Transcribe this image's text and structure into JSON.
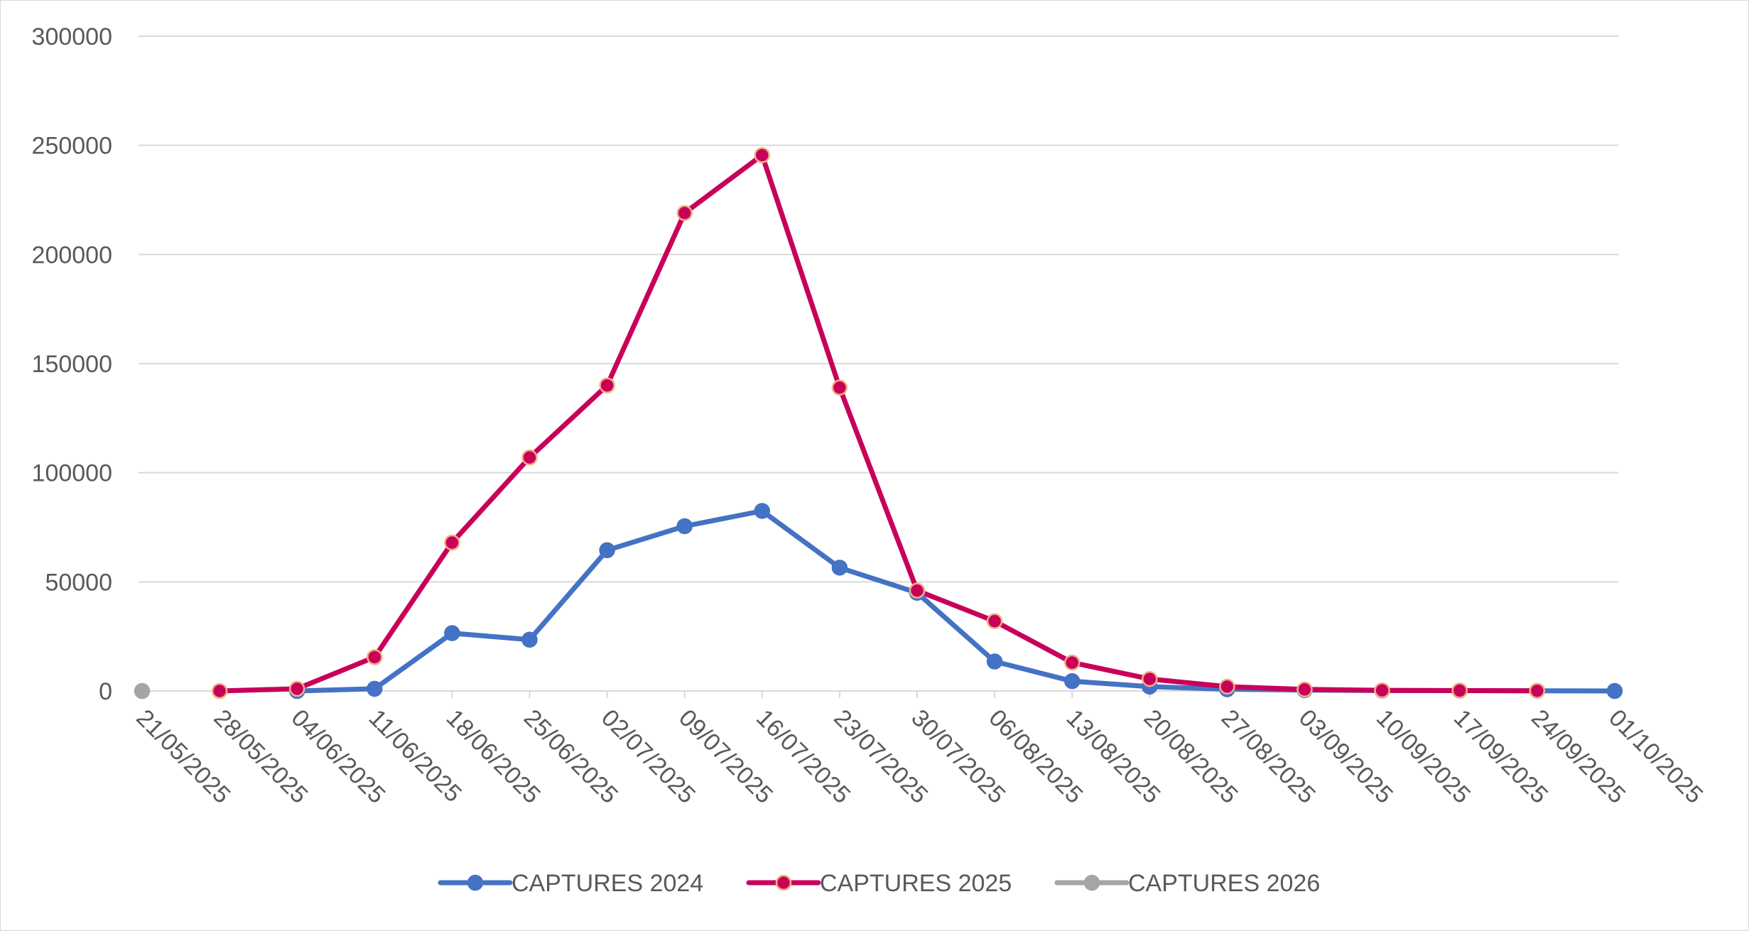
{
  "chart_data": {
    "type": "line",
    "title": "",
    "xlabel": "",
    "ylabel": "",
    "ylim": [
      0,
      300000
    ],
    "yticks": [
      "0",
      "50000",
      "100000",
      "150000",
      "200000",
      "250000",
      "300000"
    ],
    "categories": [
      "21/05/2025",
      "28/05/2025",
      "04/06/2025",
      "11/06/2025",
      "18/06/2025",
      "25/06/2025",
      "02/07/2025",
      "09/07/2025",
      "16/07/2025",
      "23/07/2025",
      "30/07/2025",
      "06/08/2025",
      "13/08/2025",
      "20/08/2025",
      "27/08/2025",
      "03/09/2025",
      "10/09/2025",
      "17/09/2025",
      "24/09/2025",
      "01/10/2025"
    ],
    "grid": true,
    "legend_position": "bottom",
    "series": [
      {
        "name": "CAPTURES 2024",
        "color": "#4472c4",
        "marker_fill": "#4472c4",
        "marker_stroke": "#4472c4",
        "values": [
          null,
          null,
          0,
          1000,
          26500,
          23500,
          64500,
          75500,
          82500,
          56500,
          45000,
          13500,
          4500,
          2000,
          800,
          400,
          200,
          150,
          100,
          0
        ]
      },
      {
        "name": "CAPTURES 2025",
        "color": "#c8005a",
        "marker_fill": "#c8005a",
        "marker_stroke": "#f4b183",
        "values": [
          null,
          0,
          1000,
          15500,
          68000,
          107000,
          140000,
          219000,
          245500,
          139000,
          46000,
          32000,
          13000,
          5500,
          2000,
          700,
          300,
          200,
          100,
          null
        ]
      },
      {
        "name": "CAPTURES 2026",
        "color": "#a5a5a5",
        "marker_fill": "#a5a5a5",
        "marker_stroke": "#a5a5a5",
        "values": [
          0,
          null,
          null,
          null,
          null,
          null,
          null,
          null,
          null,
          null,
          null,
          null,
          null,
          null,
          null,
          null,
          null,
          null,
          null,
          null
        ]
      }
    ]
  }
}
